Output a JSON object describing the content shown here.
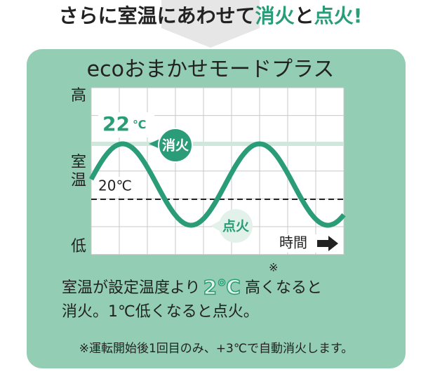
{
  "header": {
    "title_parts": [
      "さらに室温にあわせて",
      "消火",
      "と",
      "点火!"
    ]
  },
  "panel": {
    "title": "ecoおまかせモードプラス",
    "axis": {
      "high": "高",
      "room_temp_1": "室",
      "room_temp_2": "温",
      "low": "低",
      "time": "時間"
    },
    "upper_temp": {
      "number": "22",
      "unit": "℃"
    },
    "lower_temp": "20℃",
    "off_label": "消火",
    "on_label": "点火",
    "body": {
      "line1_a": "室温が設定温度より",
      "line1_b": "2℃",
      "line1_mark": "※",
      "line1_c": "高くなると",
      "line2": "消火。1℃低くなると点火。"
    },
    "footnote": "※運転開始後1回目のみ、+3℃で自動消火します。"
  }
}
